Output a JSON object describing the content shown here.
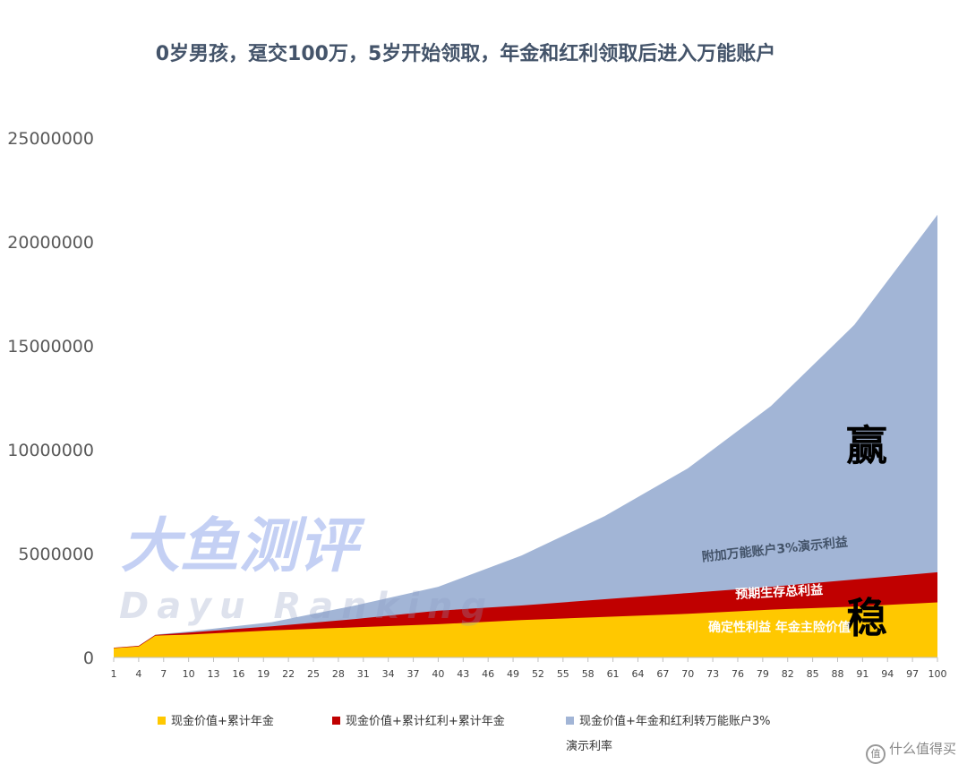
{
  "title": "0岁男孩，趸交100万，5岁开始领取，年金和红利领取后进入万能账户",
  "chart_data": {
    "type": "area",
    "stacked": false,
    "x_ticks": [
      1,
      4,
      7,
      10,
      13,
      16,
      19,
      22,
      25,
      28,
      31,
      34,
      37,
      40,
      43,
      46,
      49,
      52,
      55,
      58,
      61,
      64,
      67,
      70,
      73,
      76,
      79,
      82,
      85,
      88,
      91,
      94,
      97,
      100
    ],
    "x_range": [
      1,
      100
    ],
    "ylim": [
      0,
      25000000
    ],
    "y_ticks": [
      0,
      5000000,
      10000000,
      15000000,
      20000000,
      25000000
    ],
    "grid": false,
    "series": [
      {
        "name": "现金价值+年金和红利转万能账户3%演示利率",
        "color": "#a2b5d6",
        "points": [
          [
            1,
            470000
          ],
          [
            4,
            560000
          ],
          [
            6,
            1100000
          ],
          [
            10,
            1250000
          ],
          [
            20,
            1700000
          ],
          [
            30,
            2500000
          ],
          [
            40,
            3400000
          ],
          [
            50,
            4900000
          ],
          [
            60,
            6800000
          ],
          [
            70,
            9100000
          ],
          [
            80,
            12100000
          ],
          [
            90,
            16000000
          ],
          [
            100,
            21300000
          ]
        ]
      },
      {
        "name": "现金价值+累计红利+累计年金",
        "color": "#c00000",
        "points": [
          [
            1,
            470000
          ],
          [
            4,
            560000
          ],
          [
            6,
            1080000
          ],
          [
            10,
            1200000
          ],
          [
            20,
            1500000
          ],
          [
            30,
            1850000
          ],
          [
            40,
            2250000
          ],
          [
            50,
            2500000
          ],
          [
            60,
            2800000
          ],
          [
            70,
            3100000
          ],
          [
            80,
            3400000
          ],
          [
            90,
            3750000
          ],
          [
            100,
            4100000
          ]
        ]
      },
      {
        "name": "现金价值+累计年金",
        "color": "#ffc800",
        "points": [
          [
            1,
            450000
          ],
          [
            4,
            530000
          ],
          [
            6,
            1050000
          ],
          [
            10,
            1100000
          ],
          [
            20,
            1300000
          ],
          [
            30,
            1450000
          ],
          [
            40,
            1600000
          ],
          [
            50,
            1800000
          ],
          [
            60,
            1950000
          ],
          [
            70,
            2100000
          ],
          [
            80,
            2300000
          ],
          [
            90,
            2450000
          ],
          [
            100,
            2650000
          ]
        ]
      }
    ],
    "annotations": [
      {
        "text": "赢",
        "x": 91.5,
        "y": 9500000,
        "color": "#000000",
        "size": "large",
        "rotate": 0,
        "bold": true
      },
      {
        "text": "稳",
        "x": 91.5,
        "y": 1200000,
        "color": "#000000",
        "size": "large",
        "rotate": 0,
        "bold": true
      },
      {
        "text": "附加万能账户3%演示利益",
        "x": 80.5,
        "y": 5000000,
        "color": "#44546a",
        "size": "small",
        "rotate": -6,
        "bold": true
      },
      {
        "text": "预期生存总利益",
        "x": 81,
        "y": 2950000,
        "color": "#ffffff",
        "size": "small",
        "rotate": -3,
        "bold": true
      },
      {
        "text": "确定性利益  年金主险价值",
        "x": 81,
        "y": 1250000,
        "color": "#ffffff",
        "size": "small",
        "rotate": 0,
        "bold": true
      }
    ]
  },
  "legend_lines": [
    [
      "现金价值+累计年金"
    ],
    [
      "现金价值+累计红利+累计年金"
    ],
    [
      "现金价值+年金和红利转万能账户3%",
      "演示利率"
    ]
  ],
  "brand_watermark": {
    "title": "大鱼测评",
    "subtitle": "Dayu Ranking"
  },
  "site_watermark": "什么值得买",
  "site_icon_glyph": "值"
}
